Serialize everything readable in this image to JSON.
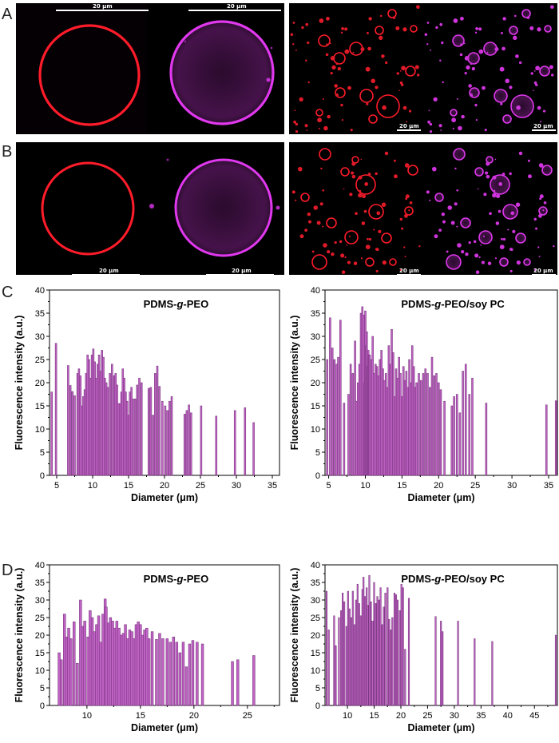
{
  "panel_letters": {
    "A": "A",
    "B": "B",
    "C": "C",
    "D": "D"
  },
  "scale_bar_label": "20 μm",
  "colors": {
    "membrane_red": "#ff1c2a",
    "membrane_magenta": "#e038ee",
    "bar_fill": "#bf62c4",
    "bar_edge": "#6e2c73",
    "micrograph_background": "#000000"
  },
  "micrographs": [
    {
      "row": "A",
      "view": "single vesicle",
      "channels": [
        "red",
        "magenta"
      ]
    },
    {
      "row": "A",
      "view": "vesicle field",
      "channels": [
        "red",
        "magenta"
      ]
    },
    {
      "row": "B",
      "view": "single vesicle",
      "channels": [
        "red",
        "magenta"
      ]
    },
    {
      "row": "B",
      "view": "vesicle field",
      "channels": [
        "red",
        "magenta"
      ]
    }
  ],
  "chart_data": [
    {
      "panel": "C",
      "type": "bar",
      "title_parts": [
        "PDMS-",
        "g",
        "-PEO"
      ],
      "xlabel": "Diameter (μm)",
      "ylabel": "Fluorescence intensity (a.u.)",
      "xlim": [
        4,
        36
      ],
      "ylim": [
        0,
        40
      ],
      "xticks": [
        5,
        10,
        15,
        20,
        25,
        30,
        35
      ],
      "yticks": [
        0,
        5,
        10,
        15,
        20,
        25,
        30,
        35,
        40
      ],
      "x": [
        4.3,
        4.9,
        6.6,
        6.9,
        7.2,
        7.5,
        7.9,
        8.1,
        8.3,
        8.5,
        8.7,
        8.9,
        9.1,
        9.3,
        9.5,
        9.7,
        9.9,
        10.1,
        10.3,
        10.5,
        10.7,
        10.9,
        11.1,
        11.3,
        11.5,
        11.7,
        11.9,
        12.1,
        12.4,
        12.7,
        13.0,
        13.2,
        13.4,
        13.6,
        13.8,
        14.0,
        14.2,
        14.4,
        14.6,
        14.8,
        15.0,
        15.2,
        15.4,
        15.6,
        15.9,
        16.2,
        16.5,
        16.8,
        17.8,
        18.1,
        18.4,
        18.7,
        19.0,
        19.3,
        19.7,
        20.1,
        20.4,
        20.7,
        21.0,
        22.8,
        23.1,
        23.4,
        23.7,
        25.1,
        27.2,
        29.8,
        31.2,
        32.4
      ],
      "values": [
        18.0,
        28.5,
        23.7,
        19.4,
        18.1,
        17.2,
        22.0,
        23.0,
        21.5,
        15.0,
        17.0,
        18.5,
        22.0,
        26.0,
        25.0,
        21.0,
        26.0,
        27.3,
        24.5,
        21.0,
        24.0,
        26.0,
        22.5,
        27.0,
        25.5,
        21.0,
        20.0,
        19.0,
        22.0,
        24.0,
        21.5,
        22.0,
        19.5,
        15.5,
        15.5,
        18.0,
        23.0,
        21.0,
        18.0,
        16.0,
        13.0,
        18.0,
        19.0,
        16.5,
        16.5,
        19.5,
        21.0,
        20.0,
        18.8,
        19.0,
        13.0,
        22.0,
        23.6,
        19.2,
        16.0,
        15.0,
        14.0,
        16.0,
        17.0,
        13.2,
        14.0,
        15.2,
        13.5,
        15.0,
        12.8,
        14.0,
        14.6,
        11.4
      ]
    },
    {
      "panel": "C",
      "type": "bar",
      "title_parts": [
        "PDMS-",
        "g",
        "-PEO/soy PC"
      ],
      "xlabel": "Diameter (μm)",
      "ylabel": "Fluorescence intensity (a.u.)",
      "xlim": [
        4.5,
        36.2
      ],
      "ylim": [
        0,
        40
      ],
      "xticks": [
        5,
        10,
        15,
        20,
        25,
        30,
        35
      ],
      "yticks": [
        0,
        5,
        10,
        15,
        20,
        25,
        30,
        35,
        40
      ],
      "x": [
        4.8,
        5.2,
        5.5,
        5.8,
        6.1,
        6.3,
        6.6,
        7.1,
        7.7,
        8.0,
        8.3,
        8.6,
        8.8,
        9.0,
        9.2,
        9.4,
        9.6,
        9.8,
        9.9,
        10.0,
        10.1,
        10.2,
        10.3,
        10.4,
        10.5,
        10.6,
        10.8,
        11.0,
        11.2,
        11.4,
        11.6,
        11.8,
        12.0,
        12.2,
        12.4,
        12.6,
        12.8,
        13.0,
        13.2,
        13.4,
        13.6,
        13.8,
        14.0,
        14.2,
        14.4,
        14.6,
        14.8,
        15.0,
        15.2,
        15.4,
        15.6,
        15.8,
        16.0,
        16.2,
        16.4,
        16.6,
        16.8,
        17.0,
        17.3,
        17.6,
        17.9,
        18.2,
        18.5,
        18.8,
        19.1,
        19.4,
        19.7,
        20.0,
        20.3,
        20.8,
        21.8,
        22.1,
        22.5,
        22.9,
        23.3,
        23.7,
        24.2,
        24.6,
        26.5,
        34.7,
        36.0
      ],
      "values": [
        25.0,
        34.0,
        27.5,
        25.0,
        24.0,
        25.5,
        33.5,
        15.6,
        17.5,
        24.0,
        22.0,
        29.0,
        16.0,
        20.0,
        24.0,
        35.0,
        36.4,
        34.6,
        20.0,
        35.5,
        28.0,
        31.0,
        23.5,
        27.0,
        26.0,
        26.0,
        25.0,
        30.0,
        22.0,
        24.0,
        23.5,
        21.5,
        25.0,
        27.0,
        23.0,
        20.5,
        22.0,
        19.0,
        28.0,
        24.0,
        31.5,
        26.5,
        17.0,
        23.0,
        21.0,
        25.5,
        22.0,
        17.0,
        23.5,
        20.5,
        22.5,
        19.0,
        25.0,
        20.0,
        28.0,
        23.5,
        19.0,
        20.0,
        22.0,
        20.5,
        22.0,
        23.0,
        22.0,
        19.0,
        25.5,
        21.5,
        22.0,
        20.0,
        18.5,
        16.0,
        15.0,
        17.0,
        17.5,
        13.5,
        22.5,
        24.0,
        17.5,
        21.0,
        15.6,
        15.2,
        16.1
      ]
    },
    {
      "panel": "D",
      "type": "bar",
      "title_parts": [
        "PDMS-",
        "g",
        "-PEO"
      ],
      "xlabel": "Diameter (μm)",
      "ylabel": "Fluorescence intensity (a.u.)",
      "xlim": [
        6.5,
        28
      ],
      "ylim": [
        0,
        40
      ],
      "xticks": [
        10,
        15,
        20,
        25
      ],
      "yticks": [
        0,
        5,
        10,
        15,
        20,
        25,
        30,
        35,
        40
      ],
      "x": [
        7.4,
        7.6,
        7.9,
        8.1,
        8.3,
        8.5,
        8.8,
        9.1,
        9.4,
        9.6,
        9.8,
        10.1,
        10.3,
        10.5,
        10.7,
        10.9,
        11.1,
        11.3,
        11.5,
        11.7,
        11.8,
        12.0,
        12.2,
        12.4,
        12.6,
        12.8,
        13.0,
        13.2,
        13.4,
        13.6,
        13.8,
        14.0,
        14.2,
        14.4,
        14.6,
        14.8,
        15.0,
        15.2,
        15.4,
        15.6,
        15.8,
        16.1,
        16.5,
        16.8,
        17.1,
        17.5,
        17.8,
        18.1,
        18.4,
        18.7,
        19.0,
        19.3,
        19.6,
        19.9,
        20.3,
        20.8,
        23.6,
        24.1,
        25.6
      ],
      "values": [
        15.0,
        13.0,
        26.0,
        19.5,
        22.0,
        19.0,
        23.8,
        12.0,
        30.0,
        22.5,
        24.0,
        19.5,
        27.0,
        25.0,
        21.0,
        23.0,
        25.5,
        18.0,
        26.0,
        30.3,
        28.0,
        23.5,
        25.0,
        24.0,
        22.0,
        24.0,
        22.0,
        20.0,
        20.5,
        23.0,
        19.0,
        21.5,
        21.0,
        19.0,
        23.0,
        23.8,
        23.0,
        20.0,
        21.5,
        22.0,
        19.0,
        21.0,
        18.8,
        20.5,
        19.0,
        19.0,
        18.0,
        19.5,
        18.0,
        15.0,
        18.0,
        11.0,
        17.5,
        18.5,
        18.0,
        17.5,
        12.5,
        13.0,
        14.2
      ]
    },
    {
      "panel": "D",
      "type": "bar",
      "title_parts": [
        "PDMS-",
        "g",
        "-PEO/soy PC"
      ],
      "xlabel": "Diameter (μm)",
      "ylabel": "Fluorescence intensity (a.u.)",
      "xlim": [
        5.8,
        49.3
      ],
      "ylim": [
        0,
        40
      ],
      "xticks": [
        10,
        15,
        20,
        25,
        30,
        35,
        40,
        45
      ],
      "yticks": [
        0,
        5,
        10,
        15,
        20,
        25,
        30,
        35,
        40
      ],
      "x": [
        6.1,
        6.5,
        7.5,
        7.8,
        8.4,
        8.8,
        9.1,
        9.4,
        9.8,
        10.1,
        10.4,
        10.7,
        11.0,
        11.3,
        11.6,
        11.9,
        12.2,
        12.5,
        12.8,
        13.0,
        13.3,
        13.6,
        13.8,
        14.1,
        14.4,
        14.7,
        15.0,
        15.3,
        15.6,
        15.9,
        16.2,
        16.5,
        16.8,
        17.1,
        17.5,
        17.8,
        18.1,
        18.4,
        18.8,
        19.1,
        19.4,
        19.8,
        20.1,
        20.4,
        20.8,
        21.5,
        26.5,
        27.5,
        27.8,
        30.7,
        33.8,
        37.1,
        49.0
      ],
      "values": [
        32.5,
        21.5,
        25.5,
        17.0,
        25.0,
        27.0,
        32.0,
        29.5,
        22.5,
        32.5,
        27.5,
        25.0,
        32.5,
        23.0,
        30.0,
        34.5,
        29.0,
        25.5,
        33.0,
        36.5,
        31.0,
        33.5,
        28.5,
        37.0,
        29.5,
        24.0,
        35.0,
        29.0,
        31.0,
        30.0,
        33.5,
        23.0,
        28.0,
        32.0,
        33.5,
        24.5,
        21.5,
        25.0,
        32.0,
        31.5,
        30.0,
        27.0,
        34.5,
        33.5,
        16.0,
        30.5,
        25.3,
        24.0,
        21.0,
        24.0,
        19.0,
        18.2,
        20.0
      ]
    }
  ]
}
